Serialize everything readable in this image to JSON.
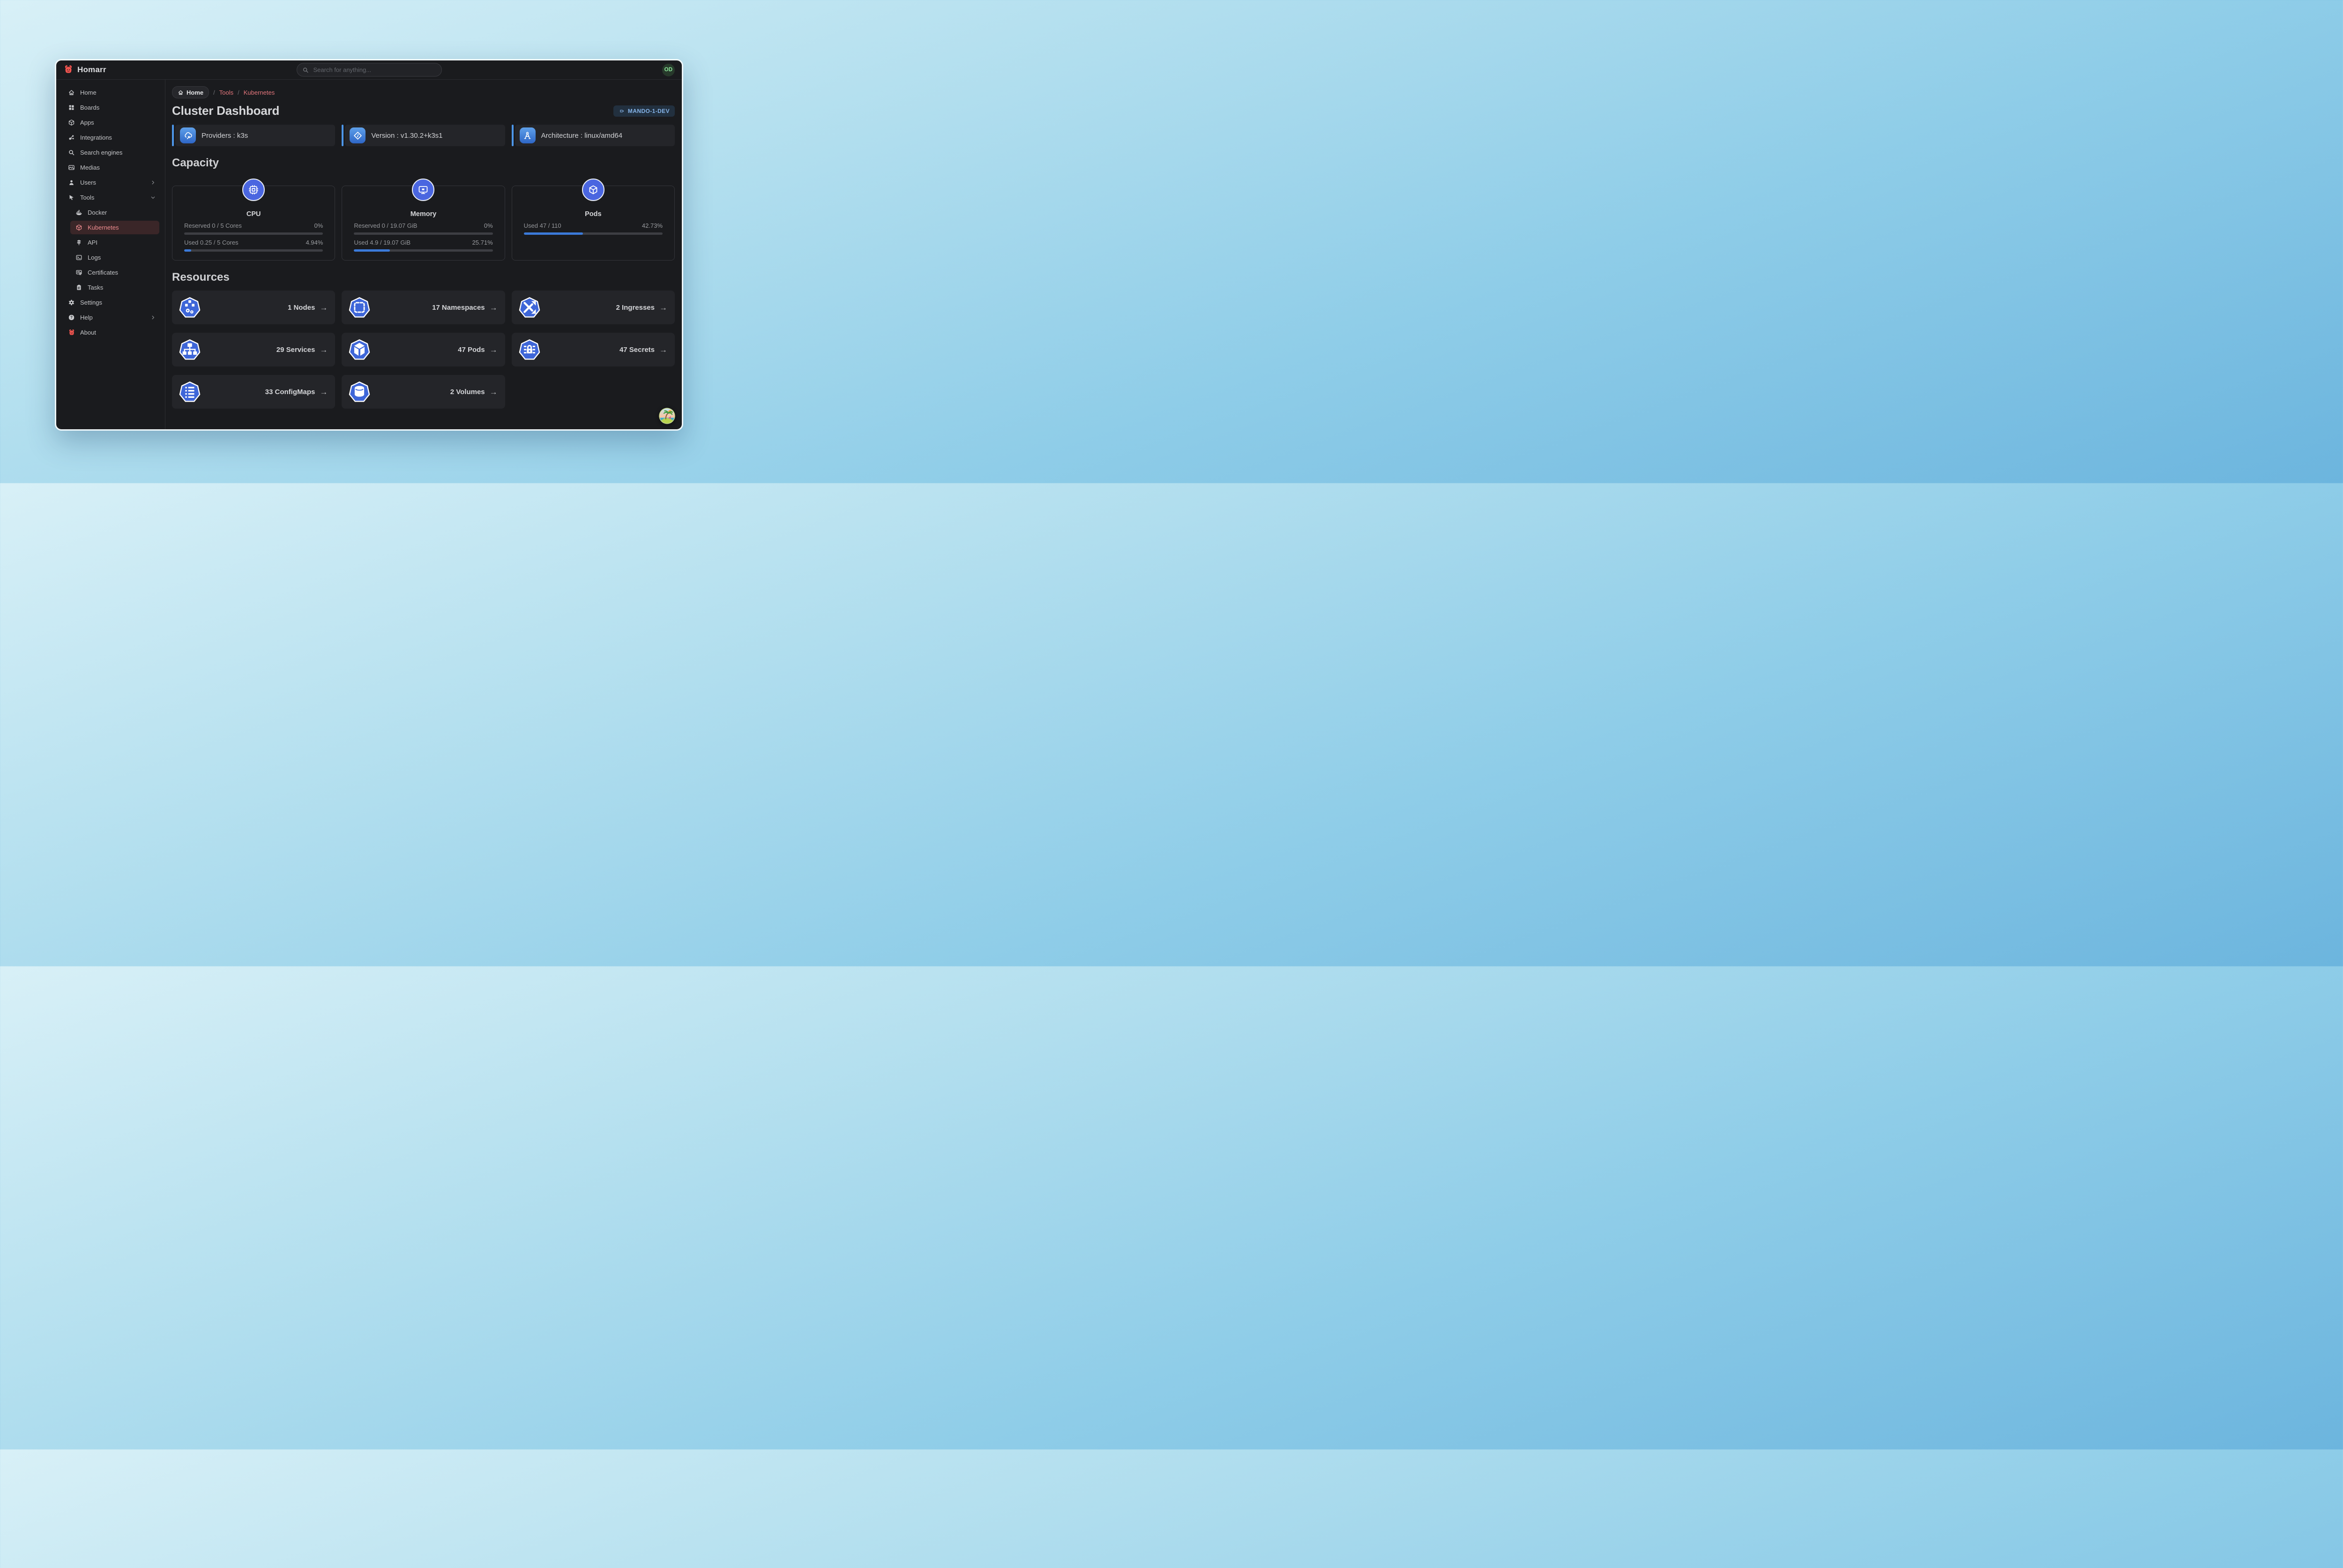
{
  "app": {
    "name": "Homarr"
  },
  "header": {
    "search_placeholder": "Search for anything...",
    "avatar_initials": "OD"
  },
  "sidebar": {
    "items": [
      {
        "label": "Home",
        "icon": "home-icon"
      },
      {
        "label": "Boards",
        "icon": "boards-icon"
      },
      {
        "label": "Apps",
        "icon": "apps-icon"
      },
      {
        "label": "Integrations",
        "icon": "integrations-icon"
      },
      {
        "label": "Search engines",
        "icon": "search-icon"
      },
      {
        "label": "Medias",
        "icon": "photo-icon"
      },
      {
        "label": "Users",
        "icon": "user-icon",
        "chevron": "right"
      },
      {
        "label": "Tools",
        "icon": "pointer-icon",
        "chevron": "down",
        "expanded": true
      },
      {
        "label": "Docker",
        "icon": "docker-icon",
        "indent": true
      },
      {
        "label": "Kubernetes",
        "icon": "kubernetes-icon",
        "indent": true,
        "active": true
      },
      {
        "label": "API",
        "icon": "signpost-icon",
        "indent": true
      },
      {
        "label": "Logs",
        "icon": "terminal-icon",
        "indent": true
      },
      {
        "label": "Certificates",
        "icon": "certificate-icon",
        "indent": true
      },
      {
        "label": "Tasks",
        "icon": "clipboard-icon",
        "indent": true
      },
      {
        "label": "Settings",
        "icon": "gear-icon"
      },
      {
        "label": "Help",
        "icon": "help-icon",
        "chevron": "right"
      },
      {
        "label": "About",
        "icon": "homarr-logo-icon"
      }
    ]
  },
  "breadcrumb": {
    "home": "Home",
    "separator": "/",
    "links": [
      "Tools",
      "Kubernetes"
    ]
  },
  "page": {
    "title": "Cluster Dashboard",
    "cluster_badge": "MANDO-1-DEV"
  },
  "info_cards": [
    {
      "label": "Providers : k3s",
      "icon": "cloud-share-icon"
    },
    {
      "label": "Version : v1.30.2+k3s1",
      "icon": "versions-icon"
    },
    {
      "label": "Architecture : linux/amd64",
      "icon": "architecture-icon"
    }
  ],
  "capacity": {
    "heading": "Capacity",
    "cards": [
      {
        "title": "CPU",
        "icon": "cpu-icon",
        "rows": [
          {
            "label": "Reserved 0 / 5 Cores",
            "percent_label": "0%",
            "percent": 0
          },
          {
            "label": "Used 0.25 / 5 Cores",
            "percent_label": "4.94%",
            "percent": 4.94
          }
        ]
      },
      {
        "title": "Memory",
        "icon": "memory-icon",
        "rows": [
          {
            "label": "Reserved 0 / 19.07 GiB",
            "percent_label": "0%",
            "percent": 0
          },
          {
            "label": "Used 4.9 / 19.07 GiB",
            "percent_label": "25.71%",
            "percent": 25.71
          }
        ]
      },
      {
        "title": "Pods",
        "icon": "cube-icon",
        "rows": [
          {
            "label": "Used 47 / 110",
            "percent_label": "42.73%",
            "percent": 42.73
          }
        ]
      }
    ]
  },
  "resources": {
    "heading": "Resources",
    "tiles": [
      {
        "label": "1 Nodes",
        "icon": "nodes-icon"
      },
      {
        "label": "17 Namespaces",
        "icon": "namespaces-icon"
      },
      {
        "label": "2 Ingresses",
        "icon": "ingresses-icon"
      },
      {
        "label": "29 Services",
        "icon": "services-icon"
      },
      {
        "label": "47 Pods",
        "icon": "pods-icon"
      },
      {
        "label": "47 Secrets",
        "icon": "secrets-icon"
      },
      {
        "label": "33 ConfigMaps",
        "icon": "configmaps-icon"
      },
      {
        "label": "2 Volumes",
        "icon": "volumes-icon"
      }
    ]
  },
  "icons": {
    "arrow_right": "→"
  },
  "colors": {
    "accent_blue": "#3b7ad9",
    "heptagon_blue": "#3e66d8",
    "accent_red": "#e4767c",
    "badge_blue": "#86b5ea",
    "avatar_green": "#8ce99a",
    "logo_red": "#f0544f"
  }
}
